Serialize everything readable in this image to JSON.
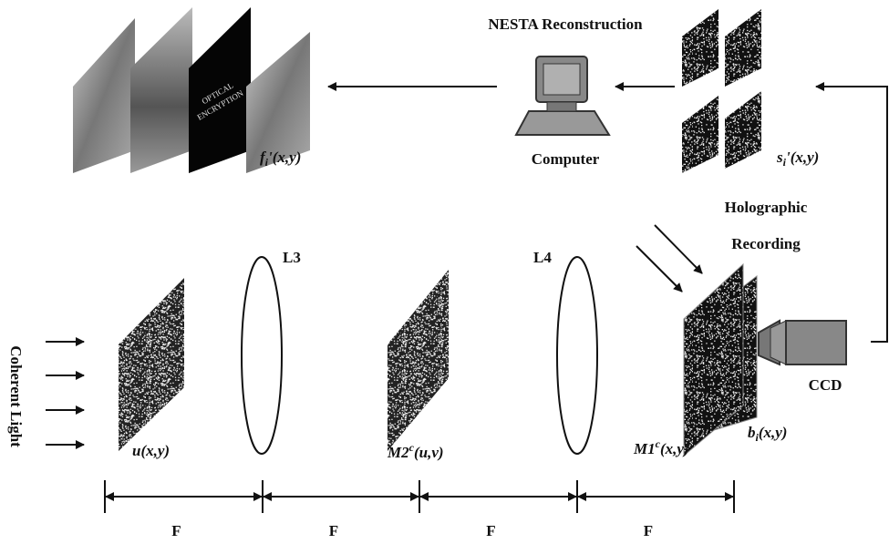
{
  "header": {
    "title": "NESTA Reconstruction"
  },
  "computer": "Computer",
  "recovered": {
    "main": "f",
    "sub": "i",
    "rest": "'(x,y)"
  },
  "image_text": [
    "OPTICAL",
    "ENCRYPTION"
  ],
  "captured": {
    "main": "s",
    "sub": "i",
    "rest": "'(x,y)"
  },
  "recording": [
    "Holographic",
    "Recording"
  ],
  "lenses": [
    "L3",
    "L4"
  ],
  "source": "Coherent Light",
  "planes": {
    "input": {
      "main": "u(x,y)"
    },
    "mask2": {
      "main": "M2",
      "sup": "c",
      "rest": "(u,v)"
    },
    "mask1": {
      "main": "M1",
      "sup": "c",
      "rest": "(x,y)"
    },
    "hologram": {
      "main": "b",
      "sub": "i",
      "rest": "(x,y)"
    }
  },
  "camera": "CCD",
  "distances": [
    "F",
    "F",
    "F",
    "F"
  ]
}
